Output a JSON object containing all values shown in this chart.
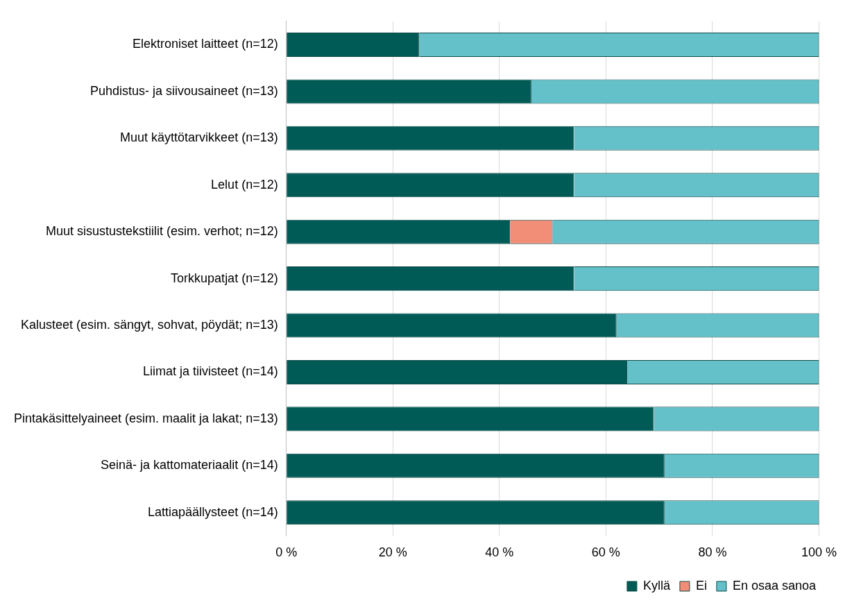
{
  "chart_data": {
    "type": "bar",
    "orientation": "horizontal",
    "stacked": true,
    "categories": [
      "Elektroniset laitteet (n=12)",
      "Puhdistus- ja siivousaineet (n=13)",
      "Muut käyttötarvikkeet (n=13)",
      "Lelut (n=12)",
      "Muut sisustustekstiilit (esim. verhot; n=12)",
      "Torkkupatjat (n=12)",
      "Kalusteet (esim. sängyt, sohvat, pöydät; n=13)",
      "Liimat ja tiivisteet (n=14)",
      "Pintakäsittelyaineet (esim. maalit ja lakat; n=13)",
      "Seinä- ja kattomateriaalit (n=14)",
      "Lattiapäällysteet (n=14)"
    ],
    "series": [
      {
        "name": "Kyllä",
        "color": "#005a55",
        "values": [
          25,
          46,
          54,
          54,
          42,
          54,
          62,
          64,
          69,
          71,
          71
        ]
      },
      {
        "name": "Ei",
        "color": "#f28e78",
        "values": [
          0,
          0,
          0,
          0,
          8,
          0,
          0,
          0,
          0,
          0,
          0
        ]
      },
      {
        "name": "En osaa sanoa",
        "color": "#64c0c9",
        "values": [
          75,
          54,
          46,
          46,
          50,
          46,
          38,
          36,
          31,
          29,
          29
        ]
      }
    ],
    "xlim": [
      0,
      100
    ],
    "xticks": [
      {
        "value": 0,
        "label": "0 %"
      },
      {
        "value": 20,
        "label": "20 %"
      },
      {
        "value": 40,
        "label": "40 %"
      },
      {
        "value": 60,
        "label": "60 %"
      },
      {
        "value": 80,
        "label": "80 %"
      },
      {
        "value": 100,
        "label": "100 %"
      }
    ],
    "grid": "x",
    "legend": "bottom right"
  }
}
